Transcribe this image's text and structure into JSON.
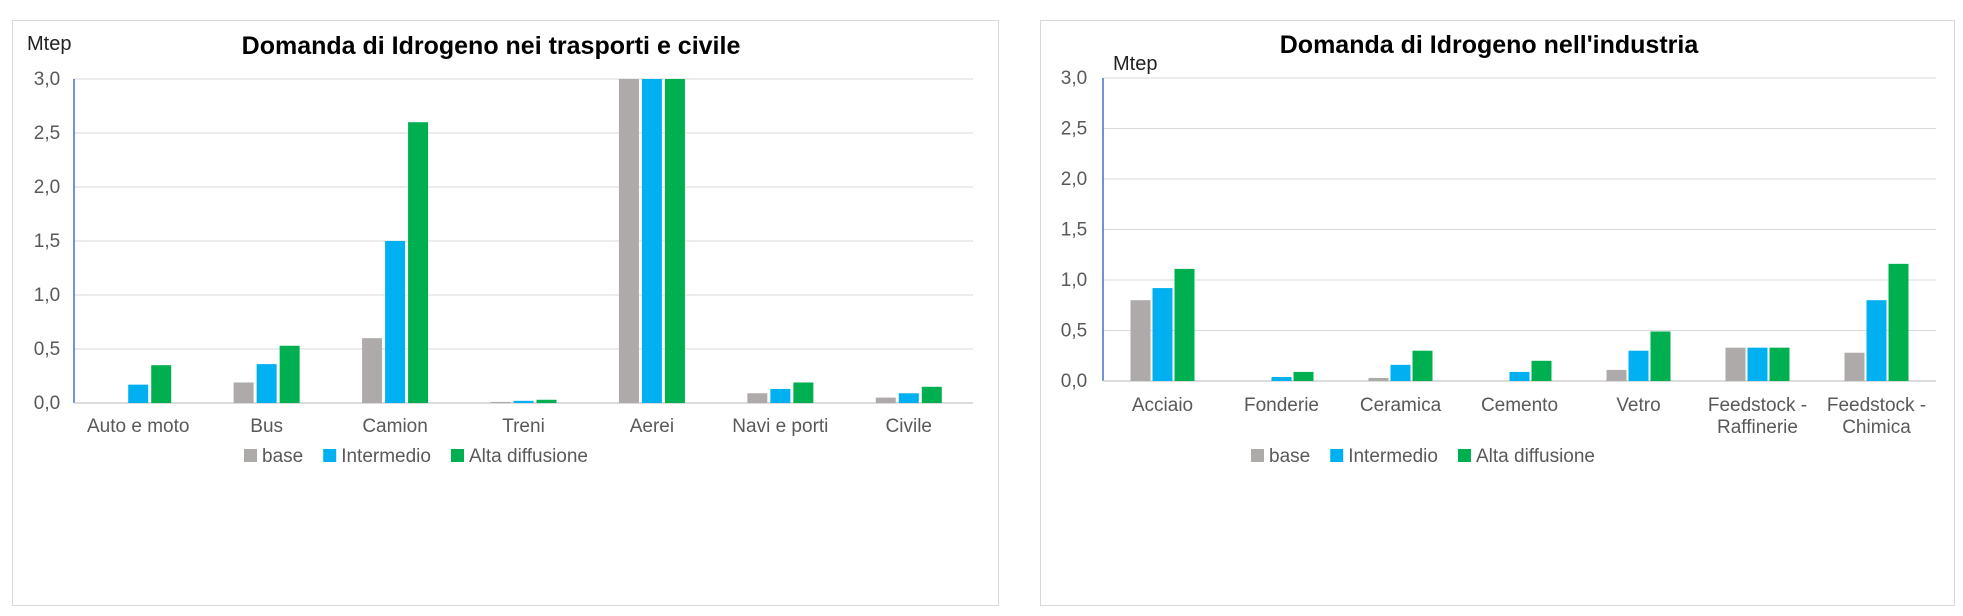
{
  "colors": {
    "base": "#aeaaaa",
    "intermedio": "#00b0f0",
    "alta": "#00b050",
    "grid": "#d9d9d9",
    "axis": "#4472c4"
  },
  "chart_data": [
    {
      "type": "bar",
      "title": "Domanda di Idrogeno nei trasporti e civile",
      "ylabel": "Mtep",
      "ylim": [
        0,
        3.0
      ],
      "yticks": [
        "0,0",
        "0,5",
        "1,0",
        "1,5",
        "2,0",
        "2,5",
        "3,0"
      ],
      "categories": [
        [
          "Auto e moto"
        ],
        [
          "Bus"
        ],
        [
          "Camion"
        ],
        [
          "Treni"
        ],
        [
          "Aerei"
        ],
        [
          "Navi e porti"
        ],
        [
          "Civile"
        ]
      ],
      "series": [
        {
          "name": "base",
          "values": [
            0.0,
            0.19,
            0.6,
            0.01,
            3.0,
            0.09,
            0.05
          ]
        },
        {
          "name": "Intermedio",
          "values": [
            0.17,
            0.36,
            1.5,
            0.02,
            3.0,
            0.13,
            0.09
          ]
        },
        {
          "name": "Alta diffusione",
          "values": [
            0.35,
            0.53,
            2.6,
            0.03,
            3.0,
            0.19,
            0.15
          ]
        }
      ],
      "grid": true,
      "legend": "bottom"
    },
    {
      "type": "bar",
      "title": "Domanda di Idrogeno nell'industria",
      "ylabel": "Mtep",
      "ylim": [
        0,
        3.0
      ],
      "yticks": [
        "0,0",
        "0,5",
        "1,0",
        "1,5",
        "2,0",
        "2,5",
        "3,0"
      ],
      "categories": [
        [
          "Acciaio"
        ],
        [
          "Fonderie"
        ],
        [
          "Ceramica"
        ],
        [
          "Cemento"
        ],
        [
          "Vetro"
        ],
        [
          "Feedstock -",
          "Raffinerie"
        ],
        [
          "Feedstock -",
          "Chimica"
        ]
      ],
      "series": [
        {
          "name": "base",
          "values": [
            0.8,
            0.0,
            0.03,
            0.0,
            0.11,
            0.33,
            0.28
          ]
        },
        {
          "name": "Intermedio",
          "values": [
            0.92,
            0.04,
            0.16,
            0.09,
            0.3,
            0.33,
            0.8
          ]
        },
        {
          "name": "Alta diffusione",
          "values": [
            1.11,
            0.09,
            0.3,
            0.2,
            0.49,
            0.33,
            1.16
          ]
        }
      ],
      "grid": true,
      "legend": "bottom"
    }
  ]
}
